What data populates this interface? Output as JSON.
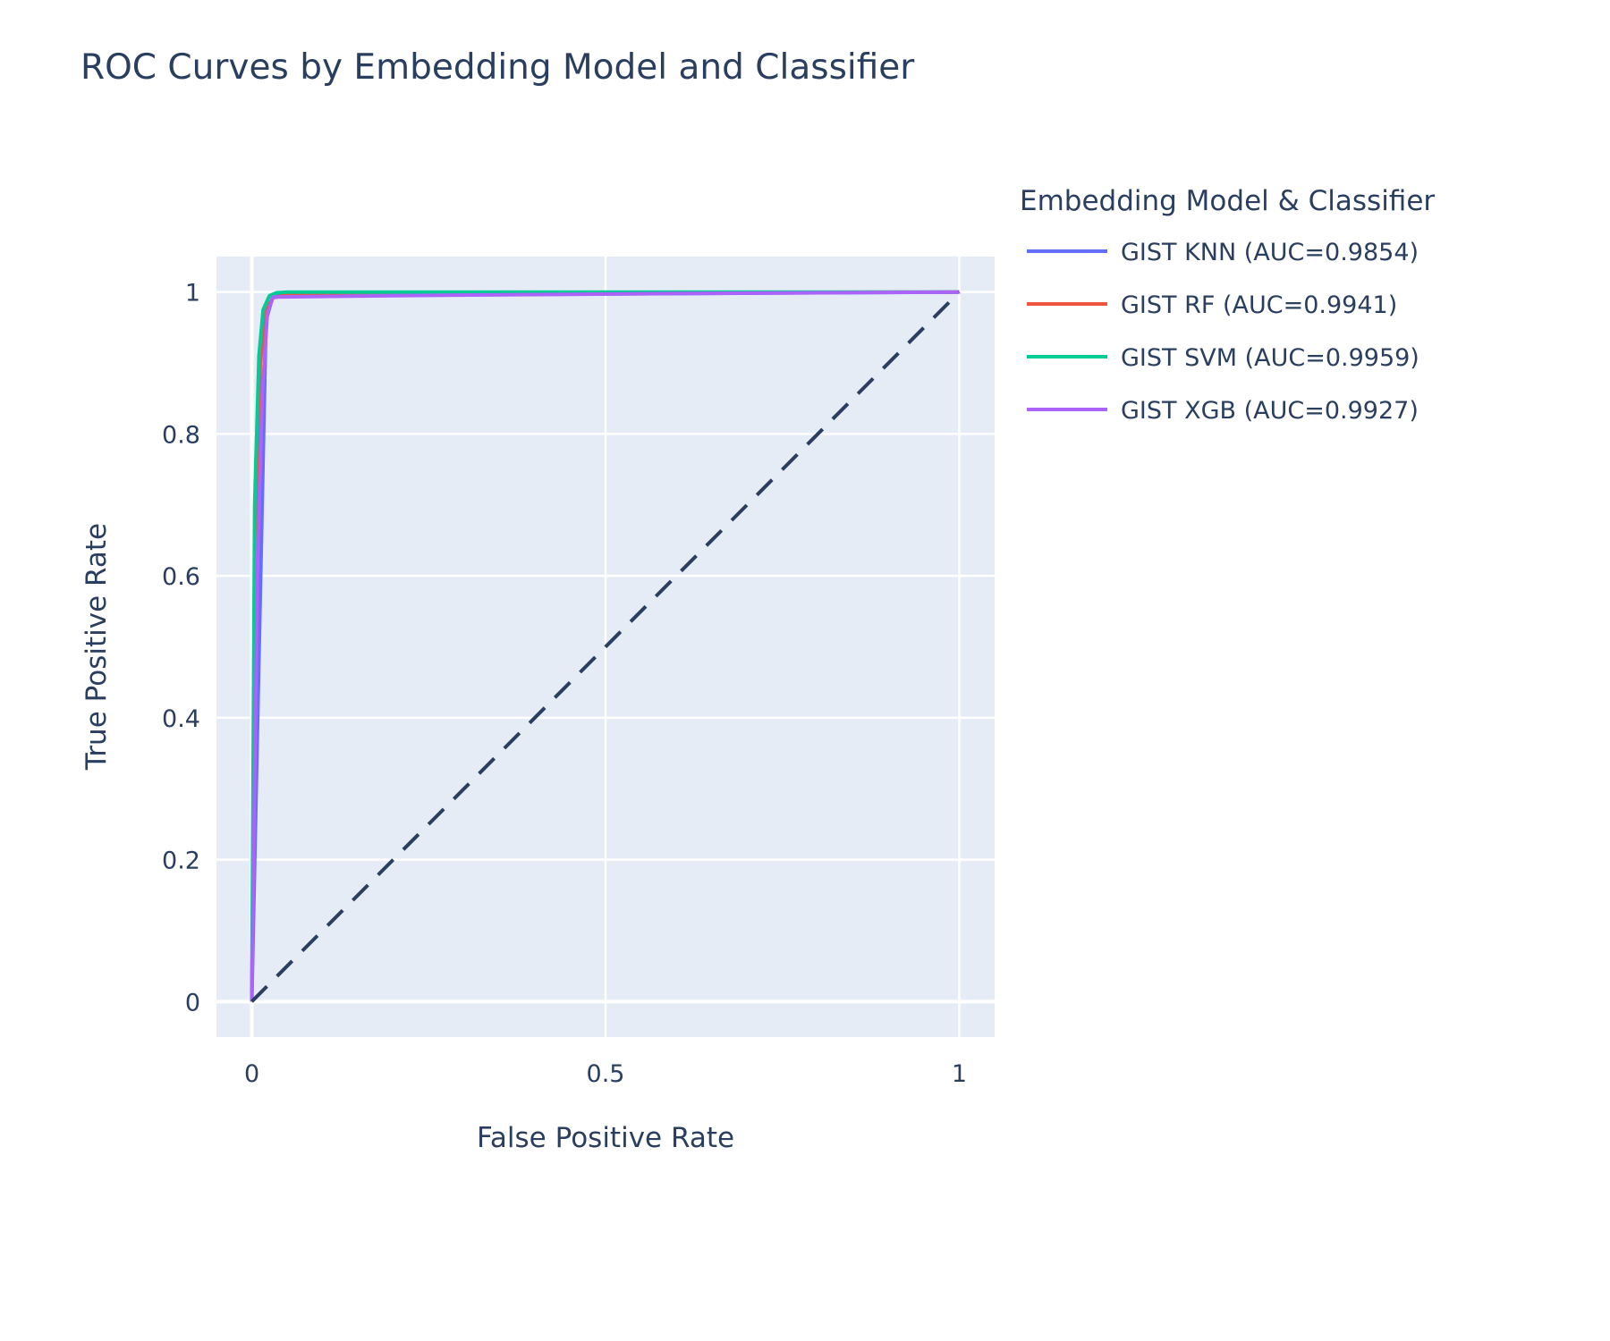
{
  "chart_data": {
    "type": "line",
    "title": "ROC Curves by Embedding Model and Classifier",
    "xlabel": "False Positive Rate",
    "ylabel": "True Positive Rate",
    "xlim": [
      -0.05,
      1.05
    ],
    "ylim": [
      -0.05,
      1.05
    ],
    "x_ticks": [
      0,
      0.5,
      1
    ],
    "x_tick_labels": [
      "0",
      "0.5",
      "1"
    ],
    "y_ticks": [
      0,
      0.2,
      0.4,
      0.6,
      0.8,
      1
    ],
    "y_tick_labels": [
      "0",
      "0.2",
      "0.4",
      "0.6",
      "0.8",
      "1"
    ],
    "grid": true,
    "legend_title": "Embedding Model & Classifier",
    "legend_position": "right",
    "plot_background": "#e5ecf6",
    "series": [
      {
        "name": "GIST KNN (AUC=0.9854)",
        "color": "#636efa",
        "x": [
          0,
          0.02,
          0.03,
          1
        ],
        "y": [
          0,
          0.96,
          0.995,
          1
        ]
      },
      {
        "name": "GIST RF (AUC=0.9941)",
        "color": "#ef553b",
        "x": [
          0,
          0.006,
          0.012,
          0.02,
          0.03,
          0.05,
          0.1,
          0.5,
          1
        ],
        "y": [
          0,
          0.65,
          0.9,
          0.975,
          0.992,
          0.996,
          0.998,
          0.999,
          1
        ]
      },
      {
        "name": "GIST SVM (AUC=0.9959)",
        "color": "#00cc96",
        "x": [
          0,
          0.004,
          0.01,
          0.016,
          0.025,
          0.035,
          0.05,
          0.1,
          1
        ],
        "y": [
          0,
          0.7,
          0.91,
          0.975,
          0.995,
          0.999,
          1,
          1,
          1
        ]
      },
      {
        "name": "GIST XGB (AUC=0.9927)",
        "color": "#ab63fa",
        "x": [
          0,
          0.008,
          0.015,
          0.022,
          0.03,
          0.2,
          0.6,
          1
        ],
        "y": [
          0,
          0.62,
          0.86,
          0.97,
          0.993,
          0.995,
          0.998,
          1
        ]
      },
      {
        "name": "Random",
        "color": "#2a3f5f",
        "dash": "dash",
        "x": [
          0,
          1
        ],
        "y": [
          0,
          1
        ],
        "show_in_legend": false
      }
    ]
  }
}
